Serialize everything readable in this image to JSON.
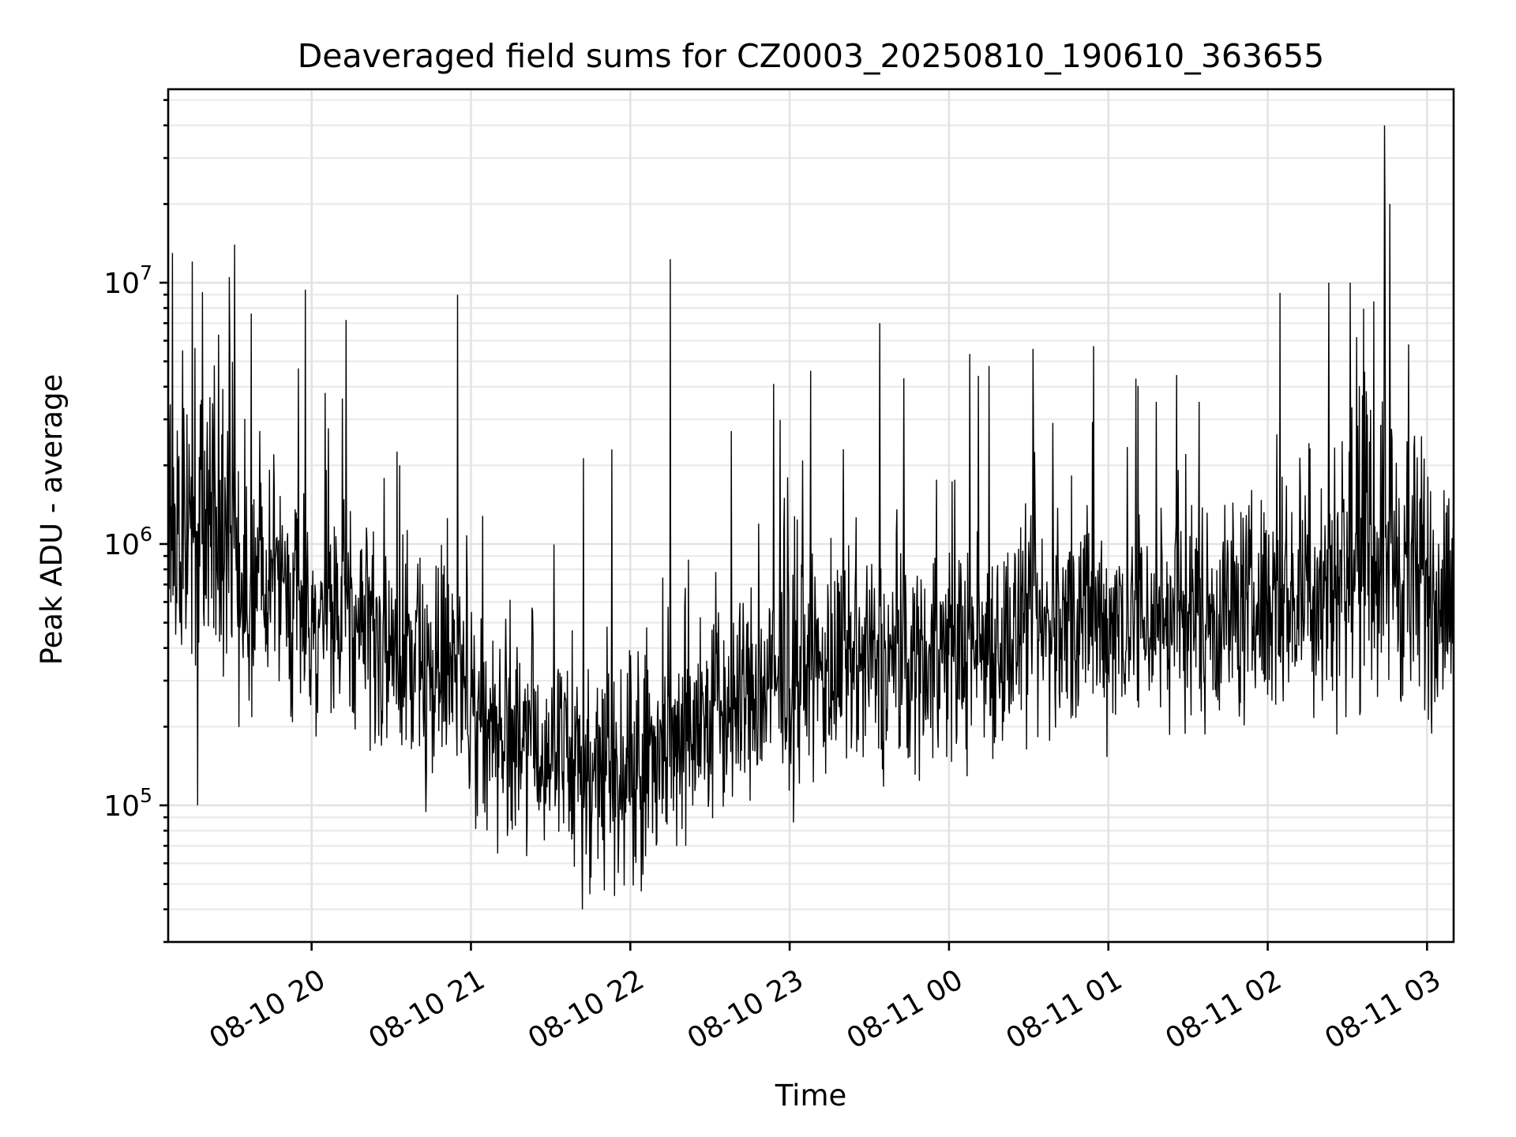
{
  "chart_data": {
    "type": "line",
    "title": "Deaveraged field sums for CZ0003_20250810_190610_363655",
    "xlabel": "Time",
    "ylabel": "Peak ADU - average",
    "yscale": "log",
    "ylim": [
      30000,
      55000000
    ],
    "xlim": [
      "2025-08-10 19:06",
      "2025-08-11 03:10"
    ],
    "grid": true,
    "legend": "none",
    "colors": {
      "line": "#000000",
      "grid": "#e3e3e3",
      "background": "#ffffff"
    },
    "x_ticks": [
      {
        "value": "2025-08-10 20:00",
        "label": "08-10 20"
      },
      {
        "value": "2025-08-10 21:00",
        "label": "08-10 21"
      },
      {
        "value": "2025-08-10 22:00",
        "label": "08-10 22"
      },
      {
        "value": "2025-08-10 23:00",
        "label": "08-10 23"
      },
      {
        "value": "2025-08-11 00:00",
        "label": "08-11 00"
      },
      {
        "value": "2025-08-11 01:00",
        "label": "08-11 01"
      },
      {
        "value": "2025-08-11 02:00",
        "label": "08-11 02"
      },
      {
        "value": "2025-08-11 03:00",
        "label": "08-11 03"
      }
    ],
    "y_ticks": [
      {
        "value": 100000,
        "base": "10",
        "exp": "5"
      },
      {
        "value": 1000000,
        "base": "10",
        "exp": "6"
      },
      {
        "value": 10000000,
        "base": "10",
        "exp": "7"
      }
    ],
    "series": [
      {
        "x": [
          "2025-08-10 19:06",
          "2025-08-10 19:10",
          "2025-08-10 19:15",
          "2025-08-10 19:20",
          "2025-08-10 19:25",
          "2025-08-10 19:30",
          "2025-08-10 19:35",
          "2025-08-10 19:40",
          "2025-08-10 19:45",
          "2025-08-10 19:50",
          "2025-08-10 19:55",
          "2025-08-10 20:00",
          "2025-08-10 20:05",
          "2025-08-10 20:10",
          "2025-08-10 20:15",
          "2025-08-10 20:20",
          "2025-08-10 20:25",
          "2025-08-10 20:30",
          "2025-08-10 20:35",
          "2025-08-10 20:40",
          "2025-08-10 20:45",
          "2025-08-10 20:50",
          "2025-08-10 20:55",
          "2025-08-10 21:00",
          "2025-08-10 21:05",
          "2025-08-10 21:10",
          "2025-08-10 21:15",
          "2025-08-10 21:20",
          "2025-08-10 21:25",
          "2025-08-10 21:30",
          "2025-08-10 21:35",
          "2025-08-10 21:40",
          "2025-08-10 21:45",
          "2025-08-10 21:50",
          "2025-08-10 21:55",
          "2025-08-10 22:00",
          "2025-08-10 22:05",
          "2025-08-10 22:10",
          "2025-08-10 22:15",
          "2025-08-10 22:20",
          "2025-08-10 22:25",
          "2025-08-10 22:30",
          "2025-08-10 22:35",
          "2025-08-10 22:40",
          "2025-08-10 22:45",
          "2025-08-10 22:50",
          "2025-08-10 22:55",
          "2025-08-10 23:00",
          "2025-08-10 23:05",
          "2025-08-10 23:10",
          "2025-08-10 23:15",
          "2025-08-10 23:20",
          "2025-08-10 23:25",
          "2025-08-10 23:30",
          "2025-08-10 23:35",
          "2025-08-10 23:40",
          "2025-08-10 23:45",
          "2025-08-10 23:50",
          "2025-08-10 23:55",
          "2025-08-11 00:00",
          "2025-08-11 00:05",
          "2025-08-11 00:10",
          "2025-08-11 00:15",
          "2025-08-11 00:20",
          "2025-08-11 00:25",
          "2025-08-11 00:30",
          "2025-08-11 00:35",
          "2025-08-11 00:40",
          "2025-08-11 00:45",
          "2025-08-11 00:50",
          "2025-08-11 00:55",
          "2025-08-11 01:00",
          "2025-08-11 01:05",
          "2025-08-11 01:10",
          "2025-08-11 01:15",
          "2025-08-11 01:20",
          "2025-08-11 01:25",
          "2025-08-11 01:30",
          "2025-08-11 01:35",
          "2025-08-11 01:40",
          "2025-08-11 01:45",
          "2025-08-11 01:50",
          "2025-08-11 01:55",
          "2025-08-11 02:00",
          "2025-08-11 02:05",
          "2025-08-11 02:10",
          "2025-08-11 02:15",
          "2025-08-11 02:20",
          "2025-08-11 02:25",
          "2025-08-11 02:30",
          "2025-08-11 02:35",
          "2025-08-11 02:40",
          "2025-08-11 02:45",
          "2025-08-11 02:50",
          "2025-08-11 02:55",
          "2025-08-11 03:00",
          "2025-08-11 03:05",
          "2025-08-11 03:10"
        ],
        "y": [
          900000,
          1100000,
          1300000,
          1000000,
          1200000,
          1000000,
          800000,
          700000,
          650000,
          600000,
          600000,
          550000,
          520000,
          500000,
          480000,
          450000,
          420000,
          400000,
          380000,
          350000,
          330000,
          310000,
          300000,
          260000,
          220000,
          200000,
          180000,
          170000,
          160000,
          150000,
          150000,
          140000,
          140000,
          135000,
          140000,
          150000,
          155000,
          165000,
          175000,
          190000,
          200000,
          215000,
          230000,
          240000,
          260000,
          270000,
          285000,
          300000,
          310000,
          320000,
          330000,
          330000,
          335000,
          340000,
          345000,
          350000,
          360000,
          370000,
          380000,
          390000,
          400000,
          410000,
          420000,
          430000,
          440000,
          450000,
          460000,
          470000,
          480000,
          490000,
          500000,
          510000,
          520000,
          525000,
          530000,
          535000,
          540000,
          545000,
          550000,
          555000,
          560000,
          565000,
          570000,
          580000,
          600000,
          620000,
          650000,
          700000,
          780000,
          850000,
          900000,
          950000,
          1000000,
          850000,
          700000,
          650000,
          650000,
          650000
        ],
        "spikes": [
          {
            "x": "2025-08-10 19:19",
            "y": 9200000
          },
          {
            "x": "2025-08-10 19:29",
            "y": 10500000
          },
          {
            "x": "2025-08-10 19:31",
            "y": 14000000
          },
          {
            "x": "2025-08-10 19:55",
            "y": 4700000
          },
          {
            "x": "2025-08-10 20:13",
            "y": 7200000
          },
          {
            "x": "2025-08-10 20:55",
            "y": 9000000
          },
          {
            "x": "2025-08-10 21:53",
            "y": 2300000
          },
          {
            "x": "2025-08-10 22:15",
            "y": 12300000
          },
          {
            "x": "2025-08-10 22:54",
            "y": 4100000
          },
          {
            "x": "2025-08-10 23:08",
            "y": 4600000
          },
          {
            "x": "2025-08-10 23:34",
            "y": 7000000
          },
          {
            "x": "2025-08-11 00:11",
            "y": 4400000
          },
          {
            "x": "2025-08-11 00:15",
            "y": 4800000
          },
          {
            "x": "2025-08-11 01:18",
            "y": 3500000
          },
          {
            "x": "2025-08-11 02:23",
            "y": 10000000
          },
          {
            "x": "2025-08-11 02:31",
            "y": 10000000
          },
          {
            "x": "2025-08-11 02:44",
            "y": 40000000
          },
          {
            "x": "2025-08-11 02:46",
            "y": 20000000
          },
          {
            "x": "2025-08-11 02:53",
            "y": 5800000
          }
        ],
        "minima": [
          {
            "x": "2025-08-10 19:17",
            "y": 100000
          },
          {
            "x": "2025-08-10 21:42",
            "y": 40000
          },
          {
            "x": "2025-08-10 21:54",
            "y": 45000
          }
        ]
      }
    ]
  }
}
